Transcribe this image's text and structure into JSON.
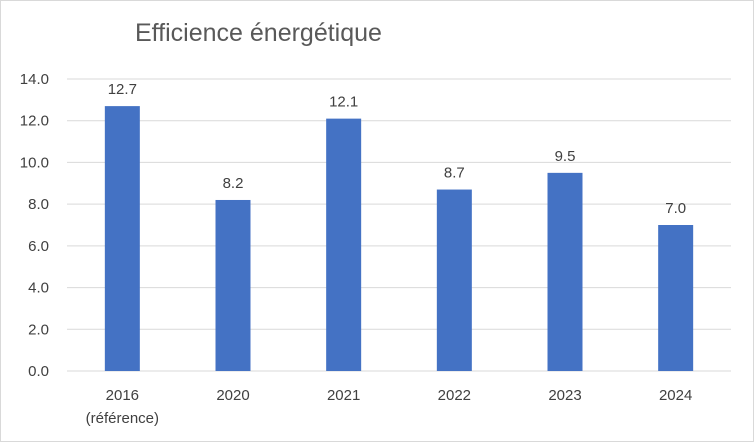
{
  "chart_data": {
    "type": "bar",
    "title": "Efficience énergétique",
    "categories": [
      "2016",
      "2020",
      "2021",
      "2022",
      "2023",
      "2024"
    ],
    "category_notes": [
      "(référence)",
      "",
      "",
      "",
      "",
      ""
    ],
    "values": [
      12.7,
      8.2,
      12.1,
      8.7,
      9.5,
      7.0
    ],
    "data_labels": [
      "12.7",
      "8.2",
      "12.1",
      "8.7",
      "9.5",
      "7.0"
    ],
    "y_ticks": [
      "0.0",
      "2.0",
      "4.0",
      "6.0",
      "8.0",
      "10.0",
      "12.0",
      "14.0"
    ],
    "ylim": [
      0,
      14
    ],
    "xlabel": "",
    "ylabel": "",
    "grid": true,
    "legend": "none",
    "bar_color": "#4472C4",
    "grid_color": "#d9d9d9"
  }
}
